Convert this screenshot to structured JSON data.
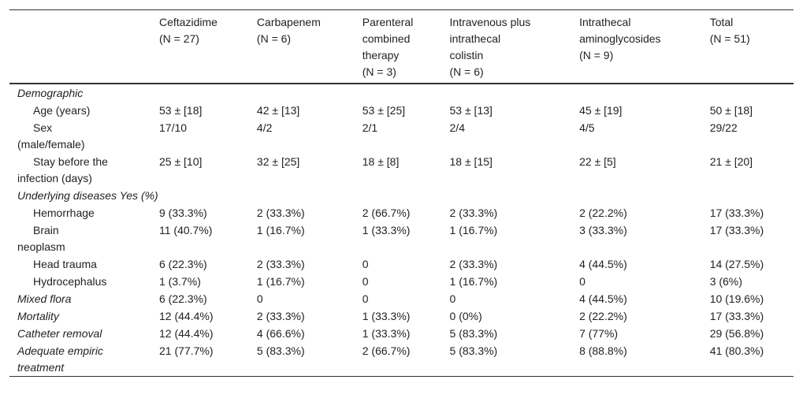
{
  "table": {
    "header": [
      [
        "Ceftazidime",
        "(N = 27)"
      ],
      [
        "Carbapenem",
        "(N = 6)"
      ],
      [
        "Parenteral",
        "combined",
        "therapy",
        "(N = 3)"
      ],
      [
        "Intravenous plus",
        "intrathecal",
        "colistin",
        "(N = 6)"
      ],
      [
        "Intrathecal",
        "aminoglycosides",
        "(N = 9)"
      ],
      [
        "Total",
        "(N = 51)"
      ]
    ],
    "sections": [
      {
        "title": "Demographic",
        "rows": [
          {
            "label": [
              "Age (years)"
            ],
            "cells": [
              "53 ± [18]",
              "42 ± [13]",
              "53 ± [25]",
              "53 ± [13]",
              "45 ± [19]",
              "50 ± [18]"
            ]
          },
          {
            "label": [
              "Sex",
              "(male/female)"
            ],
            "cells": [
              "17/10",
              "4/2",
              "2/1",
              "2/4",
              "4/5",
              "29/22"
            ]
          },
          {
            "label": [
              "Stay before the",
              "infection (days)"
            ],
            "cells": [
              "25 ± [10]",
              "32 ± [25]",
              "18 ± [8]",
              "18 ± [15]",
              "22 ± [5]",
              "21 ± [20]"
            ]
          }
        ]
      },
      {
        "title": "Underlying diseases Yes (%)",
        "rows": [
          {
            "label": [
              "Hemorrhage"
            ],
            "cells": [
              "9 (33.3%)",
              "2 (33.3%)",
              "2 (66.7%)",
              "2 (33.3%)",
              "2 (22.2%)",
              "17 (33.3%)"
            ]
          },
          {
            "label": [
              "Brain",
              "neoplasm"
            ],
            "cells": [
              "11 (40.7%)",
              "1 (16.7%)",
              "1 (33.3%)",
              "1 (16.7%)",
              "3 (33.3%)",
              "17 (33.3%)"
            ]
          },
          {
            "label": [
              "Head trauma"
            ],
            "cells": [
              "6 (22.3%)",
              "2 (33.3%)",
              "0",
              "2 (33.3%)",
              "4 (44.5%)",
              "14 (27.5%)"
            ]
          },
          {
            "label": [
              "Hydrocephalus"
            ],
            "cells": [
              "1 (3.7%)",
              "1 (16.7%)",
              "0",
              "1 (16.7%)",
              "0",
              "3 (6%)"
            ]
          }
        ]
      }
    ],
    "outcomes": [
      {
        "label": [
          "Mixed flora"
        ],
        "cells": [
          "6 (22.3%)",
          "0",
          "0",
          "0",
          "4 (44.5%)",
          "10 (19.6%)"
        ]
      },
      {
        "label": [
          "Mortality"
        ],
        "cells": [
          "12 (44.4%)",
          "2 (33.3%)",
          "1 (33.3%)",
          "0 (0%)",
          "2 (22.2%)",
          "17 (33.3%)"
        ]
      },
      {
        "label": [
          "Catheter removal"
        ],
        "cells": [
          "12 (44.4%)",
          "4 (66.6%)",
          "1 (33.3%)",
          "5 (83.3%)",
          "7 (77%)",
          "29 (56.8%)"
        ]
      },
      {
        "label": [
          "Adequate empiric",
          "treatment"
        ],
        "cells": [
          "21 (77.7%)",
          "5 (83.3%)",
          "2 (66.7%)",
          "5 (83.3%)",
          "8 (88.8%)",
          "41 (80.3%)"
        ]
      }
    ]
  }
}
